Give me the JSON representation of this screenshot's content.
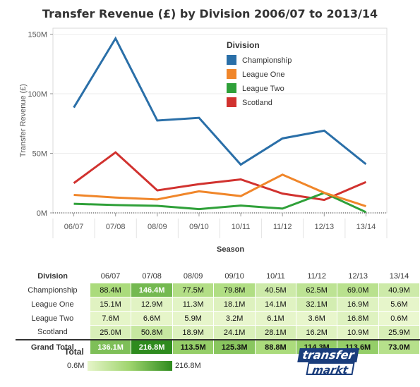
{
  "chart_data": [
    {
      "type": "line",
      "title": "Transfer Revenue (£) by Division 2006/07 to 2013/14",
      "xlabel": "Season",
      "ylabel": "Transfer Revenue (£)",
      "categories": [
        "06/07",
        "07/08",
        "08/09",
        "09/10",
        "10/11",
        "11/12",
        "12/13",
        "13/14"
      ],
      "yticks": [
        "0M",
        "50M",
        "100M",
        "150M"
      ],
      "ylim": [
        0,
        155
      ],
      "legend_title": "Division",
      "legend_position": "top-right",
      "series": [
        {
          "name": "Championship",
          "color": "#2a6fa8",
          "values": [
            88.4,
            146.4,
            77.5,
            79.8,
            40.5,
            62.5,
            69.0,
            40.9
          ]
        },
        {
          "name": "League One",
          "color": "#f0862a",
          "values": [
            15.1,
            12.9,
            11.3,
            18.1,
            14.1,
            32.1,
            16.9,
            5.6
          ]
        },
        {
          "name": "League Two",
          "color": "#2fa039",
          "values": [
            7.6,
            6.6,
            5.9,
            3.2,
            6.1,
            3.6,
            16.8,
            0.6
          ]
        },
        {
          "name": "Scotland",
          "color": "#d1322f",
          "values": [
            25.0,
            50.8,
            18.9,
            24.1,
            28.1,
            16.2,
            10.9,
            25.9
          ]
        }
      ]
    },
    {
      "type": "table",
      "row_header": "Division",
      "column_header": "Season",
      "columns": [
        "06/07",
        "07/08",
        "08/09",
        "09/10",
        "10/11",
        "11/12",
        "12/13",
        "13/14"
      ],
      "rows": [
        {
          "label": "Championship",
          "values": [
            "88.4M",
            "146.4M",
            "77.5M",
            "79.8M",
            "40.5M",
            "62.5M",
            "69.0M",
            "40.9M"
          ],
          "nums": [
            88.4,
            146.4,
            77.5,
            79.8,
            40.5,
            62.5,
            69.0,
            40.9
          ]
        },
        {
          "label": "League One",
          "values": [
            "15.1M",
            "12.9M",
            "11.3M",
            "18.1M",
            "14.1M",
            "32.1M",
            "16.9M",
            "5.6M"
          ],
          "nums": [
            15.1,
            12.9,
            11.3,
            18.1,
            14.1,
            32.1,
            16.9,
            5.6
          ]
        },
        {
          "label": "League Two",
          "values": [
            "7.6M",
            "6.6M",
            "5.9M",
            "3.2M",
            "6.1M",
            "3.6M",
            "16.8M",
            "0.6M"
          ],
          "nums": [
            7.6,
            6.6,
            5.9,
            3.2,
            6.1,
            3.6,
            16.8,
            0.6
          ]
        },
        {
          "label": "Scotland",
          "values": [
            "25.0M",
            "50.8M",
            "18.9M",
            "24.1M",
            "28.1M",
            "16.2M",
            "10.9M",
            "25.9M"
          ],
          "nums": [
            25.0,
            50.8,
            18.9,
            24.1,
            28.1,
            16.2,
            10.9,
            25.9
          ]
        }
      ],
      "total": {
        "label": "Grand Total",
        "values": [
          "136.1M",
          "216.8M",
          "113.5M",
          "125.3M",
          "88.8M",
          "114.3M",
          "113.6M",
          "73.0M"
        ],
        "nums": [
          136.1,
          216.8,
          113.5,
          125.3,
          88.8,
          114.3,
          113.6,
          73.0
        ]
      },
      "color_legend": {
        "title": "Total",
        "min_label": "0.6M",
        "max_label": "216.8M",
        "min": 0.6,
        "max": 216.8,
        "colors": [
          "#e6f5c9",
          "#2e8b1e"
        ]
      }
    }
  ],
  "logo": {
    "line1": "transfer",
    "line2": "markt"
  }
}
